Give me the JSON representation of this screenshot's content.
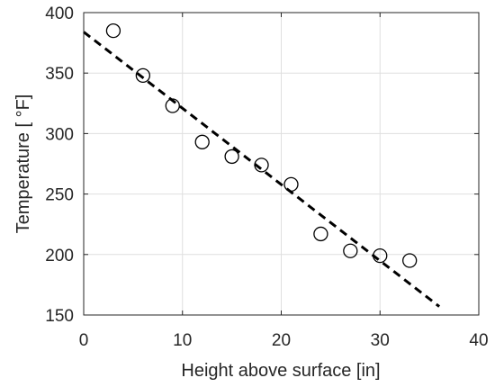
{
  "chart_data": {
    "type": "scatter",
    "xlabel": "Height above surface [in]",
    "ylabel": "Temperature [ °F]",
    "xlim": [
      0,
      40
    ],
    "ylim": [
      150,
      400
    ],
    "xticks": [
      0,
      10,
      20,
      30,
      40
    ],
    "yticks": [
      150,
      200,
      250,
      300,
      350,
      400
    ],
    "grid": true,
    "series": [
      {
        "kind": "points",
        "marker": "open-circle",
        "color": "#000000",
        "x": [
          3,
          6,
          9,
          12,
          15,
          18,
          21,
          24,
          27,
          30,
          33
        ],
        "y": [
          385,
          348,
          323,
          293,
          281,
          274,
          258,
          217,
          203,
          199,
          195
        ]
      },
      {
        "kind": "fit-line",
        "style": "dashed",
        "color": "#000000",
        "x": [
          0,
          36
        ],
        "y": [
          384,
          157
        ]
      }
    ]
  }
}
